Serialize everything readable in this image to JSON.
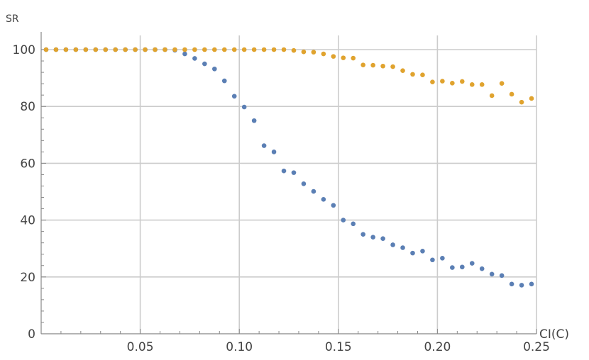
{
  "chart_data": {
    "type": "scatter",
    "xlabel": "CI(C)",
    "ylabel": "SR",
    "xlim": [
      0,
      0.25
    ],
    "ylim": [
      0,
      105
    ],
    "x_ticks": [
      "0.05",
      "0.10",
      "0.15",
      "0.20",
      "0.25"
    ],
    "x_tick_values": [
      0.05,
      0.1,
      0.15,
      0.2,
      0.25
    ],
    "y_ticks": [
      "0",
      "20",
      "40",
      "60",
      "80",
      "100"
    ],
    "y_tick_values": [
      0,
      20,
      40,
      60,
      80,
      100
    ],
    "grid": true,
    "series": [
      {
        "color": "#5b7fb4",
        "x": [
          0.0025,
          0.0075,
          0.0125,
          0.0175,
          0.0225,
          0.0275,
          0.0325,
          0.0375,
          0.0425,
          0.0475,
          0.0525,
          0.0575,
          0.0625,
          0.0675,
          0.0725,
          0.0775,
          0.0825,
          0.0875,
          0.0925,
          0.0975,
          0.1025,
          0.1075,
          0.1125,
          0.1175,
          0.1225,
          0.1275,
          0.1325,
          0.1375,
          0.1425,
          0.1475,
          0.1525,
          0.1575,
          0.1625,
          0.1675,
          0.1725,
          0.1775,
          0.1825,
          0.1875,
          0.1925,
          0.1975,
          0.2025,
          0.2075,
          0.2125,
          0.2175,
          0.2225,
          0.2275,
          0.2325,
          0.2375,
          0.2425,
          0.2475
        ],
        "y": [
          100,
          100,
          100,
          100,
          100,
          100,
          100,
          100,
          100,
          100,
          100,
          100,
          100,
          99.8,
          98.5,
          96.9,
          95,
          93.2,
          89,
          83.6,
          79.8,
          75,
          66.2,
          64,
          57.3,
          56.7,
          52.8,
          50.1,
          47.3,
          45.2,
          40,
          38.7,
          35,
          34,
          33.5,
          31.3,
          30.3,
          28.4,
          29.1,
          26,
          26.6,
          23.3,
          23.5,
          24.8,
          22.9,
          21,
          20.5,
          17.5,
          17.1,
          17.5
        ]
      },
      {
        "color": "#e0a32e",
        "x": [
          0.0025,
          0.0075,
          0.0125,
          0.0175,
          0.0225,
          0.0275,
          0.0325,
          0.0375,
          0.0425,
          0.0475,
          0.0525,
          0.0575,
          0.0625,
          0.0675,
          0.0725,
          0.0775,
          0.0825,
          0.0875,
          0.0925,
          0.0975,
          0.1025,
          0.1075,
          0.1125,
          0.1175,
          0.1225,
          0.1275,
          0.1325,
          0.1375,
          0.1425,
          0.1475,
          0.1525,
          0.1575,
          0.1625,
          0.1675,
          0.1725,
          0.1775,
          0.1825,
          0.1875,
          0.1925,
          0.1975,
          0.2025,
          0.2075,
          0.2125,
          0.2175,
          0.2225,
          0.2275,
          0.2325,
          0.2375,
          0.2425,
          0.2475
        ],
        "y": [
          100,
          100,
          100,
          100,
          100,
          100,
          100,
          100,
          100,
          100,
          100,
          100,
          100,
          100,
          100,
          100,
          100,
          100,
          100,
          100,
          100,
          100,
          100,
          100,
          100,
          99.7,
          99.2,
          99.1,
          98.5,
          97.6,
          97.1,
          97,
          94.6,
          94.5,
          94.2,
          94,
          92.6,
          91.3,
          91.1,
          88.6,
          88.9,
          88.2,
          88.8,
          87.7,
          87.7,
          83.8,
          88.1,
          84.3,
          81.5,
          82.8
        ]
      }
    ]
  }
}
